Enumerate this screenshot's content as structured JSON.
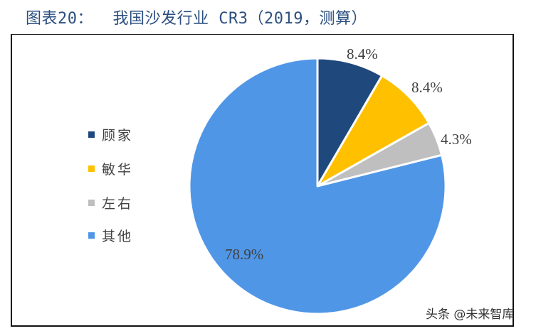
{
  "title": "图表20：  我国沙发行业 CR3（2019，测算）",
  "chart_data": {
    "type": "pie",
    "title": "图表20：我国沙发行业 CR3（2019，测算）",
    "categories": [
      "顾家",
      "敏华",
      "左右",
      "其他"
    ],
    "values": [
      8.4,
      8.4,
      4.3,
      78.9
    ],
    "value_labels": [
      "8.4%",
      "8.4%",
      "4.3%",
      "78.9%"
    ],
    "colors": [
      "#1f497d",
      "#ffc000",
      "#bfbfbf",
      "#5096e6"
    ],
    "start_angle": "12 o'clock, clockwise",
    "legend_position": "left"
  },
  "legend": {
    "items": [
      {
        "label": "顾家",
        "color": "#1f497d"
      },
      {
        "label": "敏华",
        "color": "#ffc000"
      },
      {
        "label": "左右",
        "color": "#bfbfbf"
      },
      {
        "label": "其他",
        "color": "#5096e6"
      }
    ]
  },
  "labels": {
    "gujia": "8.4%",
    "minhua": "8.4%",
    "zuoyou": "4.3%",
    "other": "78.9%"
  },
  "watermark": "头条 @未来智库"
}
